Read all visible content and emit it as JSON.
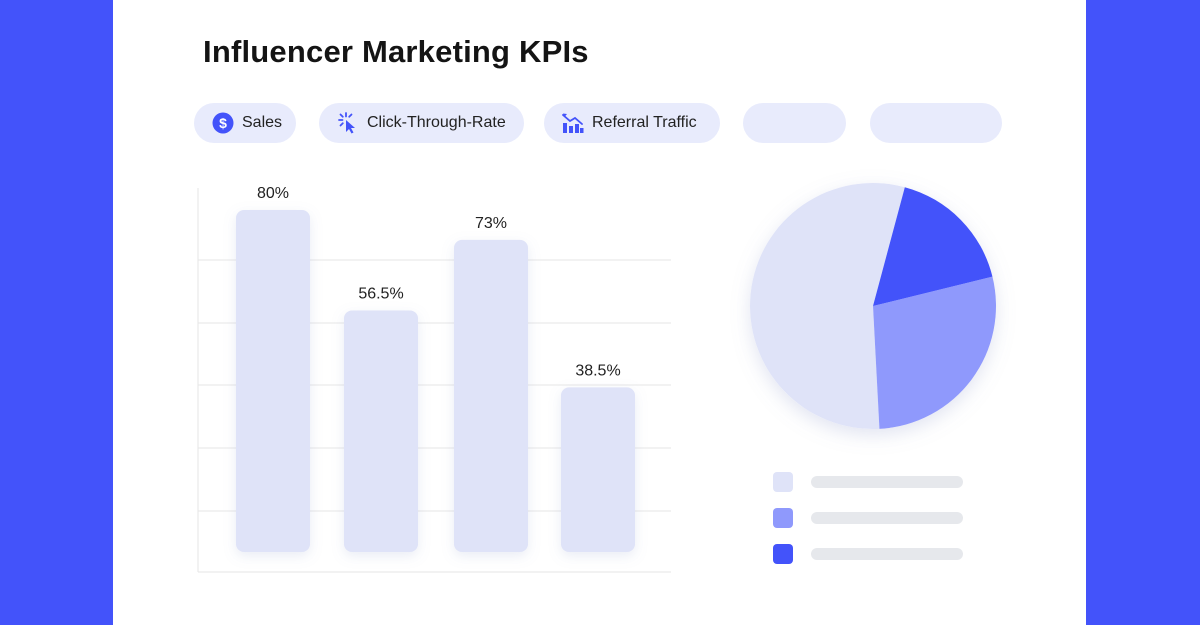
{
  "page": {
    "title": "Influencer Marketing KPIs",
    "colors": {
      "background": "#4353fa",
      "card": "#ffffff",
      "accent": "#4353fa",
      "pill": "#e8ebfc"
    }
  },
  "filters": [
    {
      "label": "Sales",
      "icon": "dollar-icon"
    },
    {
      "label": "Click-Through-Rate",
      "icon": "cursor-click-icon"
    },
    {
      "label": "Referral Traffic",
      "icon": "bar-chart-icon"
    },
    {
      "label": "",
      "icon": ""
    },
    {
      "label": "",
      "icon": ""
    }
  ],
  "chart_data": [
    {
      "type": "bar",
      "categories": [
        "",
        "",
        "",
        ""
      ],
      "values": [
        80,
        56.5,
        73,
        38.5
      ],
      "labels": [
        "80%",
        "56.5%",
        "73%",
        "38.5%"
      ],
      "ylim": [
        0,
        90
      ],
      "grid": true,
      "bar_color": "#dfe3f8",
      "grid_color": "#e6e6e6"
    },
    {
      "type": "pie",
      "values": [
        55,
        28,
        17
      ],
      "colors": [
        "#dfe3f8",
        "#8f99fc",
        "#4353fa"
      ],
      "legend_position": "bottom"
    }
  ],
  "legend": {
    "items": [
      {
        "color": "#dfe3f8"
      },
      {
        "color": "#8f99fc"
      },
      {
        "color": "#4353fa"
      }
    ]
  }
}
